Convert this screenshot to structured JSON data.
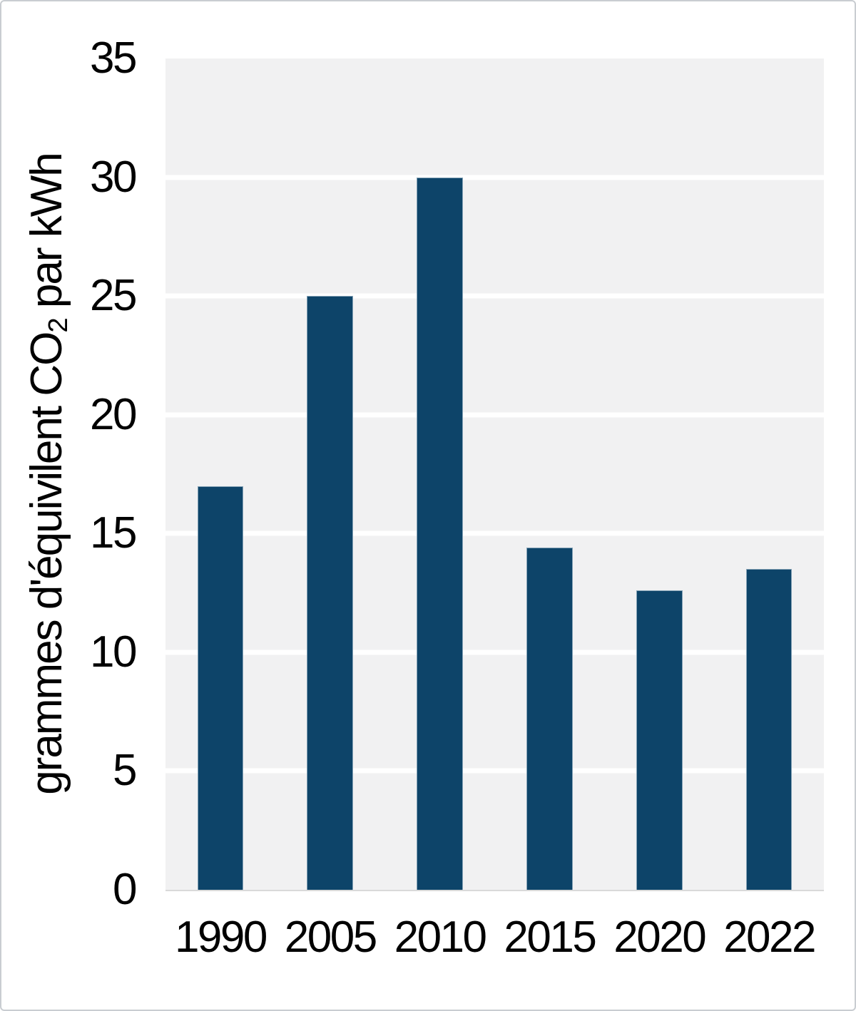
{
  "chart_data": {
    "type": "bar",
    "categories": [
      "1990",
      "2005",
      "2010",
      "2015",
      "2020",
      "2022"
    ],
    "values": [
      17,
      25,
      30,
      14.4,
      12.6,
      13.5
    ],
    "title": "",
    "xlabel": "",
    "ylabel": "grammes d'équivilent CO2 par kWh",
    "ylabel_parts": {
      "pre": "grammes d'équivilent CO",
      "sub": "2",
      "post": " par kWh"
    },
    "ylim": [
      0,
      35
    ],
    "yticks": [
      0,
      5,
      10,
      15,
      20,
      25,
      30,
      35
    ],
    "grid": "horizontal-white-lines-on-gray-bands",
    "legend": "none",
    "colors": {
      "bar_fill": "#0d4469",
      "bar_edge": "#afc3d2",
      "plot_band": "#f1f1f2",
      "gridline": "#ffffff",
      "axis_line": "#d9d9d9",
      "text": "#000000",
      "frame_border": "#c9cdd1",
      "background": "#ffffff"
    }
  }
}
